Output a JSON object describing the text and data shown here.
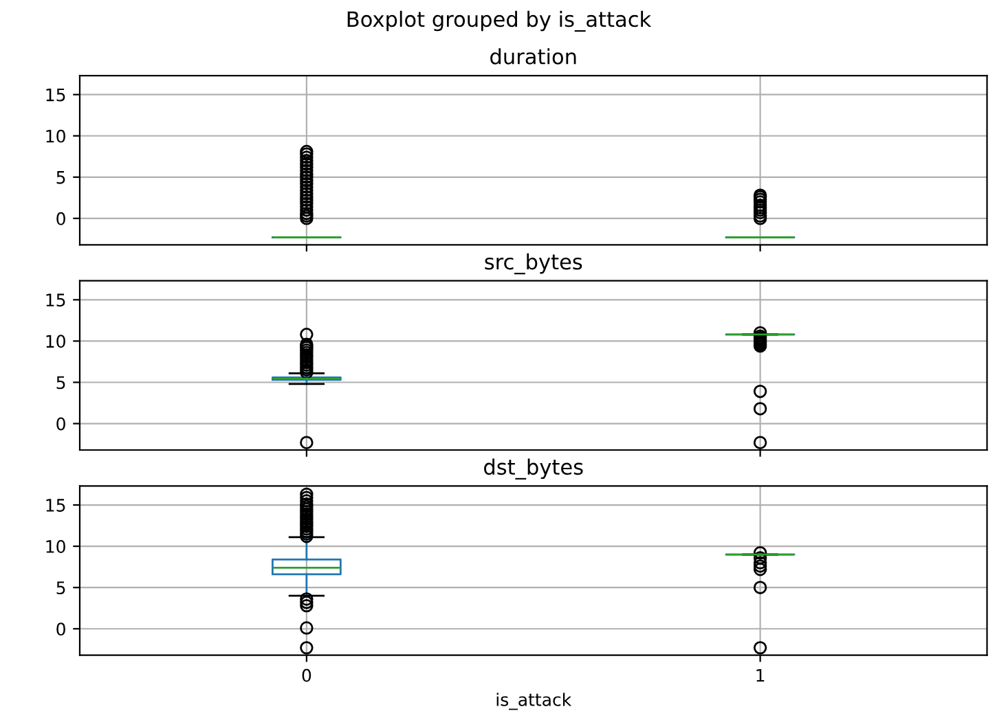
{
  "chart_data": [
    {
      "type": "box",
      "title": "duration",
      "annotations": [
        "Boxplot grouped by is_attack"
      ],
      "categories": [
        "0",
        "1"
      ],
      "ylim": [
        -3.2,
        17.3
      ],
      "yticks": [
        0,
        5,
        10,
        15
      ],
      "grid": true,
      "tick_labels": "y",
      "marker": "circle",
      "boxes": [
        {
          "low": -2.3,
          "q1": -2.3,
          "median": -2.3,
          "q3": -2.3,
          "high": -2.3,
          "outliers": [
            0,
            0.3,
            0.6,
            1,
            1.4,
            1.8,
            2.2,
            2.6,
            3,
            3.4,
            3.8,
            4.2,
            4.6,
            5,
            5.4,
            5.8,
            6.2,
            6.6,
            7,
            7.4,
            7.8,
            8.1
          ]
        },
        {
          "low": -2.3,
          "q1": -2.3,
          "median": -2.3,
          "q3": -2.3,
          "high": -2.3,
          "outliers": [
            0,
            0.3,
            0.7,
            1,
            1.3,
            1.6,
            2,
            2.3,
            2.6,
            2.8
          ]
        }
      ]
    },
    {
      "type": "box",
      "title": "src_bytes",
      "categories": [
        "0",
        "1"
      ],
      "ylim": [
        -3.2,
        17.3
      ],
      "yticks": [
        0,
        5,
        10,
        15
      ],
      "grid": true,
      "tick_labels": "y",
      "marker": "circle",
      "boxes": [
        {
          "low": 4.8,
          "q1": 5.3,
          "median": 5.45,
          "q3": 5.6,
          "high": 6.1,
          "outliers": [
            6.2,
            6.5,
            6.8,
            7.1,
            7.4,
            7.7,
            8,
            8.3,
            8.6,
            8.9,
            9.2,
            9.4,
            9.6,
            10.8,
            -2.3
          ]
        },
        {
          "low": 10.8,
          "q1": 10.8,
          "median": 10.8,
          "q3": 10.8,
          "high": 10.8,
          "outliers": [
            9.4,
            9.6,
            9.8,
            10,
            10.2,
            10.4,
            10.6,
            11,
            3.9,
            1.8,
            -2.3
          ]
        }
      ]
    },
    {
      "type": "box",
      "title": "dst_bytes",
      "xlabel": "is_attack",
      "categories": [
        "0",
        "1"
      ],
      "ylim": [
        -3.2,
        17.3
      ],
      "yticks": [
        0,
        5,
        10,
        15
      ],
      "grid": true,
      "marker": "circle",
      "boxes": [
        {
          "low": 4.0,
          "q1": 6.6,
          "median": 7.4,
          "q3": 8.4,
          "high": 11.1,
          "outliers": [
            11.2,
            11.5,
            11.8,
            12.1,
            12.4,
            12.7,
            13,
            13.3,
            13.6,
            13.9,
            14.2,
            14.5,
            14.8,
            15.1,
            15.5,
            15.9,
            16.3,
            3.6,
            3.2,
            2.8,
            0.1,
            -2.3
          ]
        },
        {
          "low": 9.0,
          "q1": 9.0,
          "median": 9.0,
          "q3": 9.0,
          "high": 9.0,
          "outliers": [
            9.2,
            8.6,
            8.0,
            7.6,
            7.2,
            5.0,
            -2.3
          ]
        }
      ]
    }
  ]
}
